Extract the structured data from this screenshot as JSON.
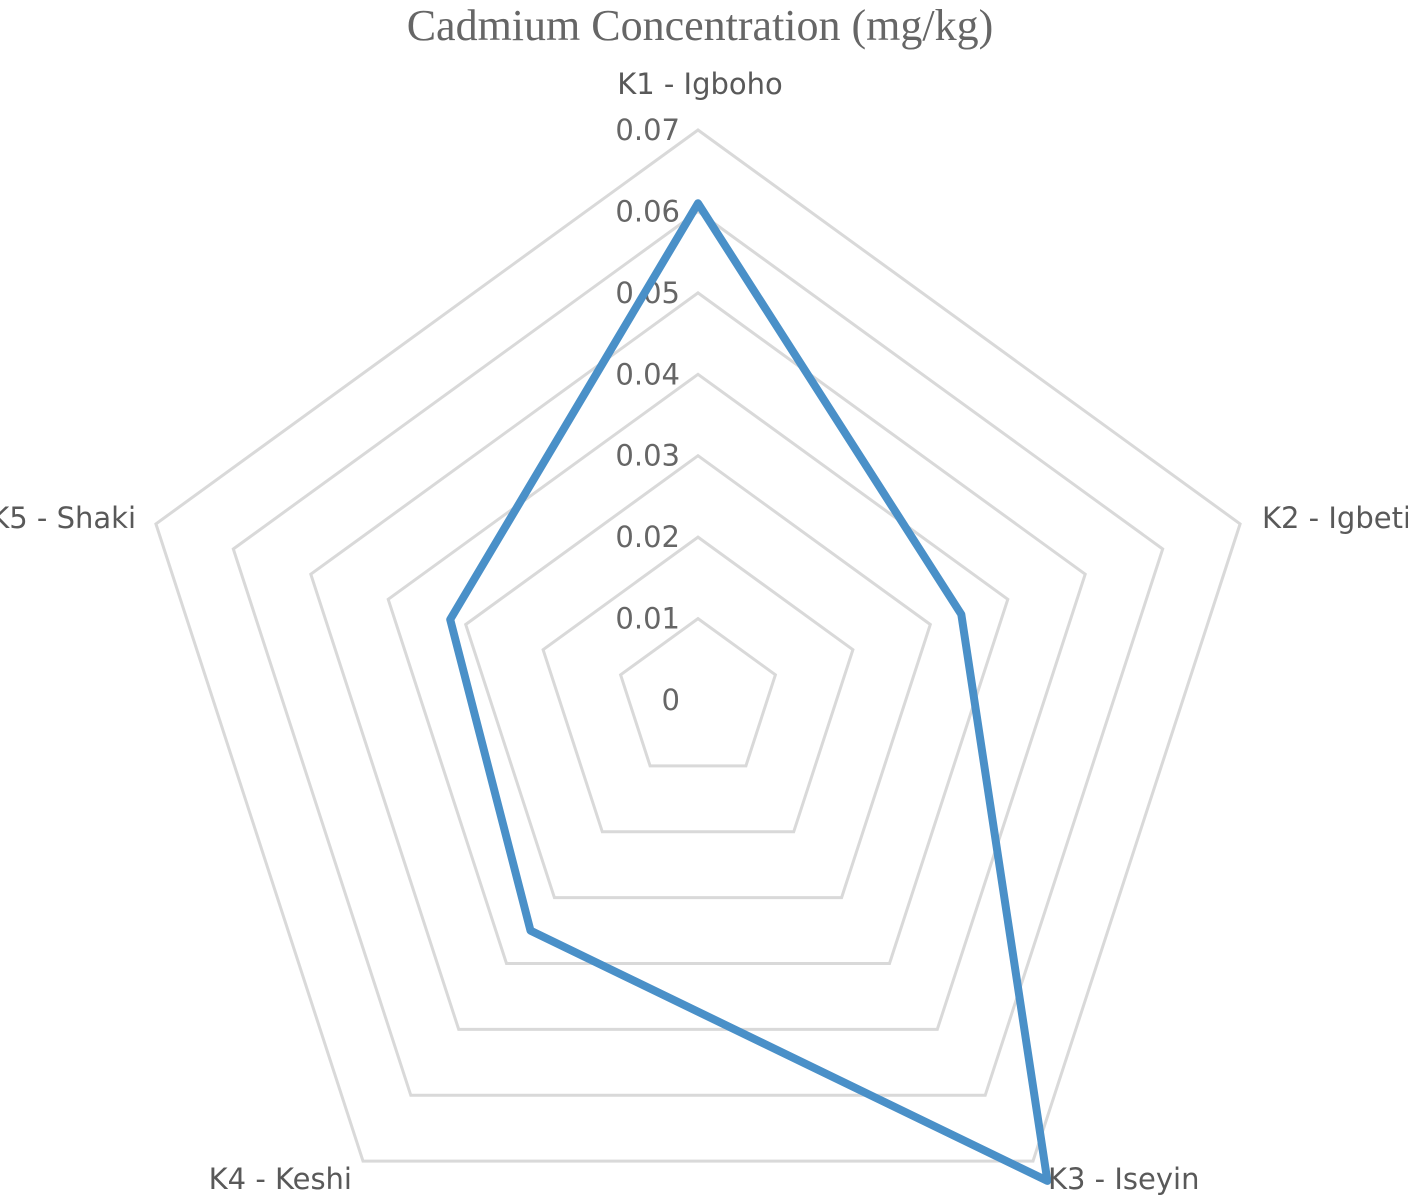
{
  "chart_data": {
    "type": "radar",
    "title": "Cadmium Concentration (mg/kg)",
    "categories": [
      "K1 - Igboho",
      "K2 - Igbeti",
      "K3 - Iseyin",
      "K4 - Keshi",
      "K5 - Shaki"
    ],
    "series": [
      {
        "values": [
          0.061,
          0.034,
          0.073,
          0.035,
          0.032
        ]
      }
    ],
    "rlim": [
      0,
      0.07
    ],
    "ticks": [
      "0",
      "0.01",
      "0.02",
      "0.03",
      "0.04",
      "0.05",
      "0.06",
      "0.07"
    ],
    "tick_values": [
      0,
      0.01,
      0.02,
      0.03,
      0.04,
      0.05,
      0.06,
      0.07
    ],
    "grid": true,
    "legend": "none",
    "colors": {
      "series": "#4a90c8",
      "grid": "#d9d9d9",
      "text": "#666666"
    }
  }
}
